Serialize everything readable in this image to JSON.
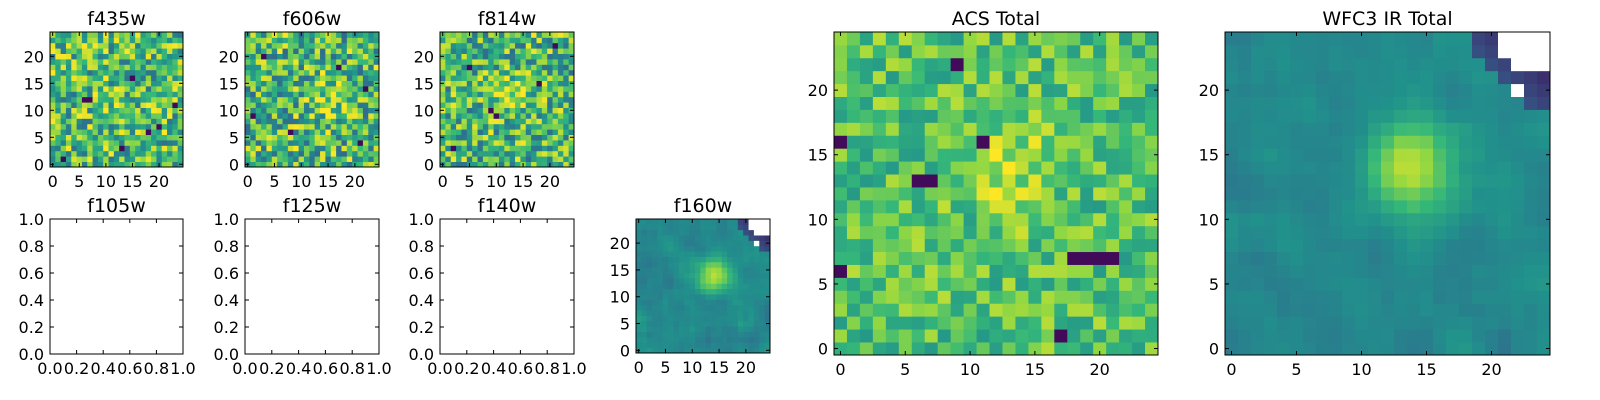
{
  "figure": {
    "colormap": [
      "#440154",
      "#31688e",
      "#21918c",
      "#35b779",
      "#90d743",
      "#fde725"
    ],
    "background": "#ffffff"
  },
  "chart_data": [
    {
      "type": "heatmap",
      "title": "f435w",
      "empty": false,
      "grid": false,
      "xlim": [
        -0.5,
        24.5
      ],
      "ylim": [
        -0.5,
        24.5
      ],
      "xticks": [
        0,
        5,
        10,
        15,
        20
      ],
      "xtick_labels": [
        "0",
        "5",
        "10",
        "15",
        "20"
      ],
      "yticks": [
        0,
        5,
        10,
        15,
        20
      ],
      "ytick_labels": [
        "0",
        "5",
        "10",
        "15",
        "20"
      ],
      "pattern": "noise",
      "level": 0.62,
      "spread": 0.38,
      "blob": {
        "center": [
          12,
          12
        ],
        "sigma": 3,
        "amp": 0.05
      },
      "dark_pixels": [
        [
          6,
          12
        ],
        [
          7,
          12
        ],
        [
          20,
          7
        ],
        [
          18,
          6
        ],
        [
          2,
          1
        ],
        [
          13,
          3
        ],
        [
          23,
          11
        ],
        [
          15,
          16
        ]
      ],
      "seed": 11
    },
    {
      "type": "heatmap",
      "title": "f606w",
      "empty": false,
      "grid": false,
      "xlim": [
        -0.5,
        24.5
      ],
      "ylim": [
        -0.5,
        24.5
      ],
      "xticks": [
        0,
        5,
        10,
        15,
        20
      ],
      "xtick_labels": [
        "0",
        "5",
        "10",
        "15",
        "20"
      ],
      "yticks": [
        0,
        5,
        10,
        15,
        20
      ],
      "ytick_labels": [
        "0",
        "5",
        "10",
        "15",
        "20"
      ],
      "pattern": "noise",
      "level": 0.6,
      "spread": 0.4,
      "blob": {
        "center": [
          15,
          12
        ],
        "sigma": 2.5,
        "amp": 0.25
      },
      "dark_pixels": [
        [
          3,
          20
        ],
        [
          21,
          4
        ],
        [
          8,
          6
        ],
        [
          17,
          18
        ],
        [
          1,
          9
        ],
        [
          22,
          14
        ]
      ],
      "seed": 23
    },
    {
      "type": "heatmap",
      "title": "f814w",
      "empty": false,
      "grid": false,
      "xlim": [
        -0.5,
        24.5
      ],
      "ylim": [
        -0.5,
        24.5
      ],
      "xticks": [
        0,
        5,
        10,
        15,
        20
      ],
      "xtick_labels": [
        "0",
        "5",
        "10",
        "15",
        "20"
      ],
      "yticks": [
        0,
        5,
        10,
        15,
        20
      ],
      "ytick_labels": [
        "0",
        "5",
        "10",
        "15",
        "20"
      ],
      "pattern": "noise",
      "level": 0.6,
      "spread": 0.38,
      "blob": {
        "center": [
          13,
          13
        ],
        "sigma": 2.3,
        "amp": 0.35
      },
      "dark_pixels": [
        [
          21,
          22
        ],
        [
          9,
          10
        ],
        [
          10,
          9
        ],
        [
          2,
          3
        ],
        [
          18,
          15
        ],
        [
          5,
          18
        ]
      ],
      "seed": 37
    },
    {
      "type": "heatmap",
      "title": "f105w",
      "empty": true,
      "grid": false,
      "xlim": [
        0.0,
        1.0
      ],
      "ylim": [
        0.0,
        1.0
      ],
      "xticks": [
        0.0,
        0.2,
        0.4,
        0.6,
        0.8,
        1.0
      ],
      "xtick_labels": [
        "0.0",
        "0.2",
        "0.4",
        "0.6",
        "0.8",
        "1.0"
      ],
      "yticks": [
        0.0,
        0.2,
        0.4,
        0.6,
        0.8,
        1.0
      ],
      "ytick_labels": [
        "0.0",
        "0.2",
        "0.4",
        "0.6",
        "0.8",
        "1.0"
      ]
    },
    {
      "type": "heatmap",
      "title": "f125w",
      "empty": true,
      "grid": false,
      "xlim": [
        0.0,
        1.0
      ],
      "ylim": [
        0.0,
        1.0
      ],
      "xticks": [
        0.0,
        0.2,
        0.4,
        0.6,
        0.8,
        1.0
      ],
      "xtick_labels": [
        "0.0",
        "0.2",
        "0.4",
        "0.6",
        "0.8",
        "1.0"
      ],
      "yticks": [
        0.0,
        0.2,
        0.4,
        0.6,
        0.8,
        1.0
      ],
      "ytick_labels": [
        "0.0",
        "0.2",
        "0.4",
        "0.6",
        "0.8",
        "1.0"
      ]
    },
    {
      "type": "heatmap",
      "title": "f140w",
      "empty": true,
      "grid": false,
      "xlim": [
        0.0,
        1.0
      ],
      "ylim": [
        0.0,
        1.0
      ],
      "xticks": [
        0.0,
        0.2,
        0.4,
        0.6,
        0.8,
        1.0
      ],
      "xtick_labels": [
        "0.0",
        "0.2",
        "0.4",
        "0.6",
        "0.8",
        "1.0"
      ],
      "yticks": [
        0.0,
        0.2,
        0.4,
        0.6,
        0.8,
        1.0
      ],
      "ytick_labels": [
        "0.0",
        "0.2",
        "0.4",
        "0.6",
        "0.8",
        "1.0"
      ]
    },
    {
      "type": "heatmap",
      "title": "f160w",
      "empty": false,
      "grid": false,
      "xlim": [
        -0.5,
        24.5
      ],
      "ylim": [
        -0.5,
        24.5
      ],
      "xticks": [
        0,
        5,
        10,
        15,
        20
      ],
      "xtick_labels": [
        "0",
        "5",
        "10",
        "15",
        "20"
      ],
      "yticks": [
        0,
        5,
        10,
        15,
        20
      ],
      "ytick_labels": [
        "0",
        "5",
        "10",
        "15",
        "20"
      ],
      "pattern": "smooth",
      "level": 0.36,
      "spread": 0.16,
      "blob": {
        "center": [
          14,
          14
        ],
        "sigma": 2.2,
        "amp": 0.55
      },
      "corner_dark": true,
      "dark_pixels": [],
      "seed": 51
    },
    {
      "type": "heatmap",
      "title": "ACS Total",
      "empty": false,
      "grid": false,
      "xlim": [
        -0.5,
        24.5
      ],
      "ylim": [
        -0.5,
        24.5
      ],
      "xticks": [
        0,
        5,
        10,
        15,
        20
      ],
      "xtick_labels": [
        "0",
        "5",
        "10",
        "15",
        "20"
      ],
      "yticks": [
        0,
        5,
        10,
        15,
        20
      ],
      "ytick_labels": [
        "0",
        "5",
        "10",
        "15",
        "20"
      ],
      "pattern": "noise",
      "level": 0.66,
      "spread": 0.22,
      "blob": {
        "center": [
          13,
          14
        ],
        "sigma": 2.6,
        "amp": 0.22
      },
      "dark_pixels": [
        [
          6,
          13
        ],
        [
          7,
          13
        ],
        [
          9,
          22
        ],
        [
          11,
          16
        ],
        [
          18,
          7
        ],
        [
          19,
          7
        ],
        [
          20,
          7
        ],
        [
          21,
          7
        ],
        [
          0,
          6
        ],
        [
          17,
          1
        ],
        [
          0,
          16
        ]
      ],
      "seed": 67
    },
    {
      "type": "heatmap",
      "title": "WFC3 IR Total",
      "empty": false,
      "grid": false,
      "xlim": [
        -0.5,
        24.5
      ],
      "ylim": [
        -0.5,
        24.5
      ],
      "xticks": [
        0,
        5,
        10,
        15,
        20
      ],
      "xtick_labels": [
        "0",
        "5",
        "10",
        "15",
        "20"
      ],
      "yticks": [
        0,
        5,
        10,
        15,
        20
      ],
      "ytick_labels": [
        "0",
        "5",
        "10",
        "15",
        "20"
      ],
      "pattern": "smooth",
      "level": 0.36,
      "spread": 0.14,
      "blob": {
        "center": [
          14,
          14
        ],
        "sigma": 2.4,
        "amp": 0.55
      },
      "corner_dark": true,
      "dark_pixels": [],
      "seed": 79
    }
  ]
}
